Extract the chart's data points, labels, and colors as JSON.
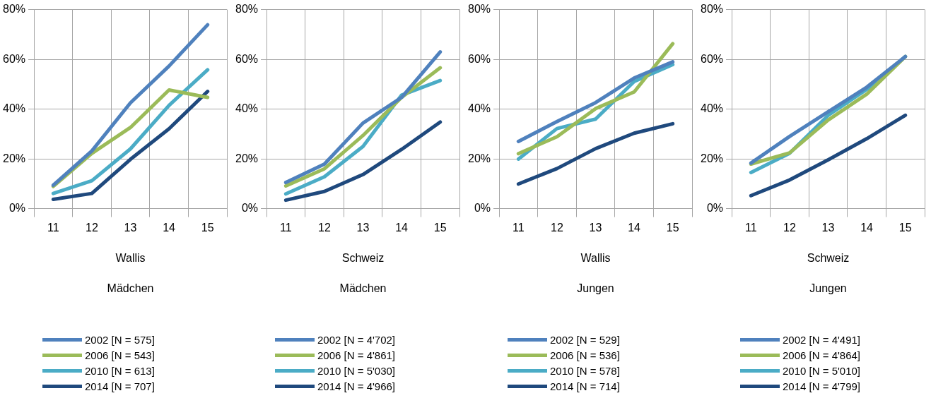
{
  "chart_data": [
    {
      "type": "line",
      "xlabel": "Wallis",
      "annotations": [
        "Mädchen"
      ],
      "categories": [
        "11",
        "12",
        "13",
        "14",
        "15"
      ],
      "ylim": [
        0,
        80
      ],
      "yticks": [
        {
          "value": 0,
          "label": "0%"
        },
        {
          "value": 20,
          "label": "20%"
        },
        {
          "value": 40,
          "label": "40%"
        },
        {
          "value": 60,
          "label": "60%"
        },
        {
          "value": 80,
          "label": "80%"
        }
      ],
      "grid": true,
      "legend": "bottom",
      "marker": "none",
      "series": [
        {
          "name": "2002 [N = 575]",
          "color": "#4f81bd",
          "values": [
            9.4,
            23.2,
            42.5,
            57.3,
            73.9
          ]
        },
        {
          "name": "2006 [N = 543]",
          "color": "#9bbb59",
          "values": [
            8.9,
            22.2,
            32.6,
            47.7,
            44.7
          ]
        },
        {
          "name": "2010 [N = 613]",
          "color": "#4bacc6",
          "values": [
            6.1,
            11.2,
            24,
            41.5,
            55.8
          ]
        },
        {
          "name": "2014 [N = 707]",
          "color": "#1f497d",
          "values": [
            3.7,
            6.1,
            19.8,
            32.1,
            47.1
          ]
        }
      ]
    },
    {
      "type": "line",
      "xlabel": "Schweiz",
      "annotations": [
        "Mädchen"
      ],
      "categories": [
        "11",
        "12",
        "13",
        "14",
        "15"
      ],
      "ylim": [
        0,
        80
      ],
      "yticks": [
        {
          "value": 0,
          "label": "0%"
        },
        {
          "value": 20,
          "label": "20%"
        },
        {
          "value": 40,
          "label": "40%"
        },
        {
          "value": 60,
          "label": "60%"
        },
        {
          "value": 80,
          "label": "80%"
        }
      ],
      "grid": true,
      "legend": "bottom",
      "marker": "none",
      "series": [
        {
          "name": "2002 [N = 4'702]",
          "color": "#4f81bd",
          "values": [
            10.5,
            17.9,
            34.4,
            44.7,
            63
          ]
        },
        {
          "name": "2006 [N = 4'861]",
          "color": "#9bbb59",
          "values": [
            9.1,
            16,
            29.4,
            44.7,
            56.6
          ]
        },
        {
          "name": "2010 [N = 5'030]",
          "color": "#4bacc6",
          "values": [
            5.9,
            12.8,
            25,
            45.6,
            51.5
          ]
        },
        {
          "name": "2014 [N = 4'966]",
          "color": "#1f497d",
          "values": [
            3.4,
            6.9,
            13.7,
            23.8,
            34.8
          ]
        }
      ]
    },
    {
      "type": "line",
      "xlabel": "Wallis",
      "annotations": [
        "Jungen"
      ],
      "categories": [
        "11",
        "12",
        "13",
        "14",
        "15"
      ],
      "ylim": [
        0,
        80
      ],
      "yticks": [
        {
          "value": 0,
          "label": "0%"
        },
        {
          "value": 20,
          "label": "20%"
        },
        {
          "value": 40,
          "label": "40%"
        },
        {
          "value": 60,
          "label": "60%"
        },
        {
          "value": 80,
          "label": "80%"
        }
      ],
      "grid": true,
      "legend": "bottom",
      "marker": "none",
      "series": [
        {
          "name": "2002 [N = 529]",
          "color": "#4f81bd",
          "values": [
            27,
            35,
            42.6,
            52.5,
            59
          ]
        },
        {
          "name": "2006 [N = 536]",
          "color": "#9bbb59",
          "values": [
            22.1,
            28.9,
            40.2,
            46.9,
            66.3
          ]
        },
        {
          "name": "2010 [N = 578]",
          "color": "#4bacc6",
          "values": [
            19.9,
            32.2,
            36,
            51.1,
            57.9
          ]
        },
        {
          "name": "2014 [N = 714]",
          "color": "#1f497d",
          "values": [
            9.9,
            16.1,
            24.1,
            30.3,
            34.1
          ]
        }
      ]
    },
    {
      "type": "line",
      "xlabel": "Schweiz",
      "annotations": [
        "Jungen"
      ],
      "categories": [
        "11",
        "12",
        "13",
        "14",
        "15"
      ],
      "ylim": [
        0,
        80
      ],
      "yticks": [
        {
          "value": 0,
          "label": "0%"
        },
        {
          "value": 20,
          "label": "20%"
        },
        {
          "value": 40,
          "label": "40%"
        },
        {
          "value": 60,
          "label": "60%"
        },
        {
          "value": 80,
          "label": "80%"
        }
      ],
      "grid": true,
      "legend": "bottom",
      "marker": "none",
      "series": [
        {
          "name": "2002 [N = 4'491]",
          "color": "#4f81bd",
          "values": [
            18.3,
            29,
            38.9,
            48.8,
            61.1
          ]
        },
        {
          "name": "2006 [N = 4'864]",
          "color": "#9bbb59",
          "values": [
            17.9,
            22.4,
            35.6,
            46,
            61.1
          ]
        },
        {
          "name": "2010 [N = 5'010]",
          "color": "#4bacc6",
          "values": [
            14.5,
            22.2,
            37.5,
            47.9,
            61.1
          ]
        },
        {
          "name": "2014 [N = 4'799]",
          "color": "#1f497d",
          "values": [
            5.2,
            11.5,
            19.6,
            28.1,
            37.5
          ]
        }
      ]
    }
  ]
}
